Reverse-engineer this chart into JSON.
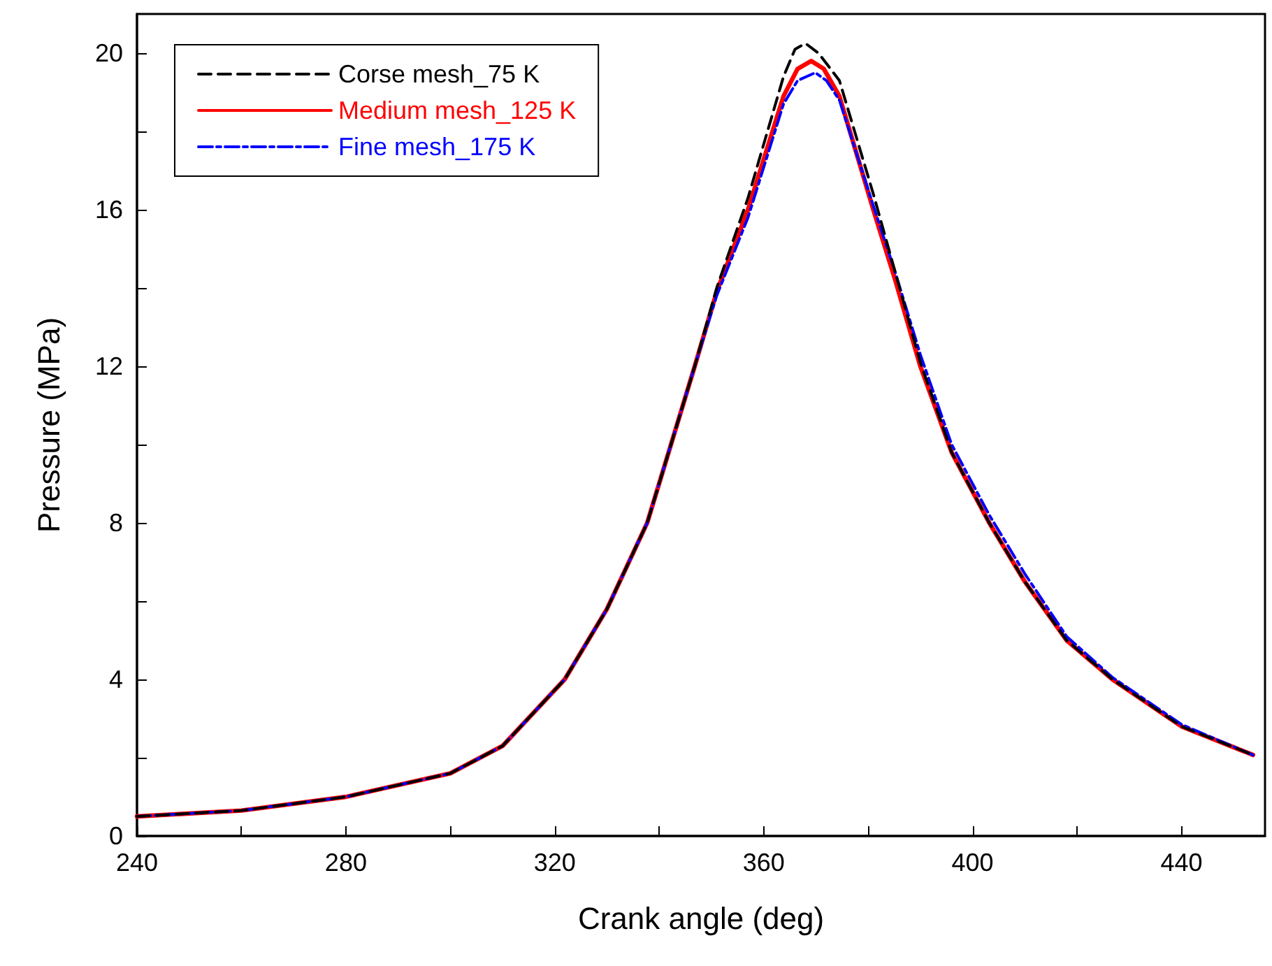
{
  "chart_data": {
    "type": "line",
    "xlabel": "Crank angle (deg)",
    "ylabel": "Pressure (MPa)",
    "xlim": [
      240,
      456
    ],
    "ylim": [
      0,
      21
    ],
    "xticks": [
      240,
      {
        "value": 260,
        "label": null
      },
      280,
      {
        "value": 300,
        "label": null
      },
      320,
      {
        "value": 340,
        "label": null
      },
      360,
      {
        "value": 380,
        "label": null
      },
      400,
      {
        "value": 420,
        "label": null
      },
      440
    ],
    "yticks": [
      0,
      {
        "value": 2,
        "label": null
      },
      4,
      {
        "value": 6,
        "label": null
      },
      8,
      {
        "value": 10,
        "label": null
      },
      12,
      {
        "value": 14,
        "label": null
      },
      16,
      {
        "value": 18,
        "label": null
      },
      20
    ],
    "grid": false,
    "legend": "top left",
    "marker": "none",
    "series": [
      {
        "name": "Corse mesh_75 K",
        "color": "#000000",
        "line_style": "dashed",
        "x": [
          240,
          260,
          280,
          290,
          300,
          310,
          321.9,
          330,
          337.7,
          346.8,
          351,
          357,
          363.8,
          366,
          368,
          370.5,
          374.5,
          381,
          385.2,
          390,
          396,
          403.2,
          410,
          418,
          426.8,
          440,
          453.7
        ],
        "values": [
          0.5,
          0.65,
          1.0,
          1.3,
          1.6,
          2.3,
          4,
          5.8,
          8,
          12,
          14.0,
          16.3,
          19.4,
          20.1,
          20.25,
          20.0,
          19.3,
          16.4,
          14.4,
          12.1,
          9.8,
          8,
          6.5,
          5.0,
          4,
          2.8,
          2.07
        ]
      },
      {
        "name": "Medium mesh_125 K",
        "color": "#ff0000",
        "line_style": "solid",
        "x": [
          240,
          260,
          280,
          290,
          300,
          310,
          321.9,
          330,
          337.7,
          346.8,
          351,
          357,
          363.8,
          366.5,
          369.1,
          371.5,
          374.5,
          381,
          385.2,
          390,
          396,
          403.2,
          410,
          418,
          426.8,
          440,
          453.7
        ],
        "values": [
          0.5,
          0.65,
          1.0,
          1.3,
          1.6,
          2.3,
          4,
          5.8,
          8,
          12,
          13.9,
          16,
          18.9,
          19.6,
          19.8,
          19.6,
          18.9,
          16,
          14.2,
          12,
          9.8,
          8,
          6.5,
          5.0,
          4,
          2.8,
          2.07
        ]
      },
      {
        "name": "Fine mesh_175 K",
        "color": "#0000ff",
        "line_style": "dashdot",
        "x": [
          240,
          260,
          280,
          290,
          300,
          310,
          321.9,
          330,
          337.7,
          346.8,
          351,
          357,
          363.8,
          366.5,
          369.9,
          372,
          374.5,
          381,
          385.2,
          390,
          396,
          403.2,
          410,
          418,
          426.8,
          440,
          453.7
        ],
        "values": [
          0.5,
          0.65,
          1.0,
          1.3,
          1.6,
          2.3,
          4,
          5.8,
          8,
          12,
          13.8,
          15.8,
          18.7,
          19.3,
          19.5,
          19.3,
          18.8,
          16.1,
          14.4,
          12.3,
          10.0,
          8.2,
          6.7,
          5.1,
          4.05,
          2.85,
          2.07
        ]
      }
    ]
  }
}
